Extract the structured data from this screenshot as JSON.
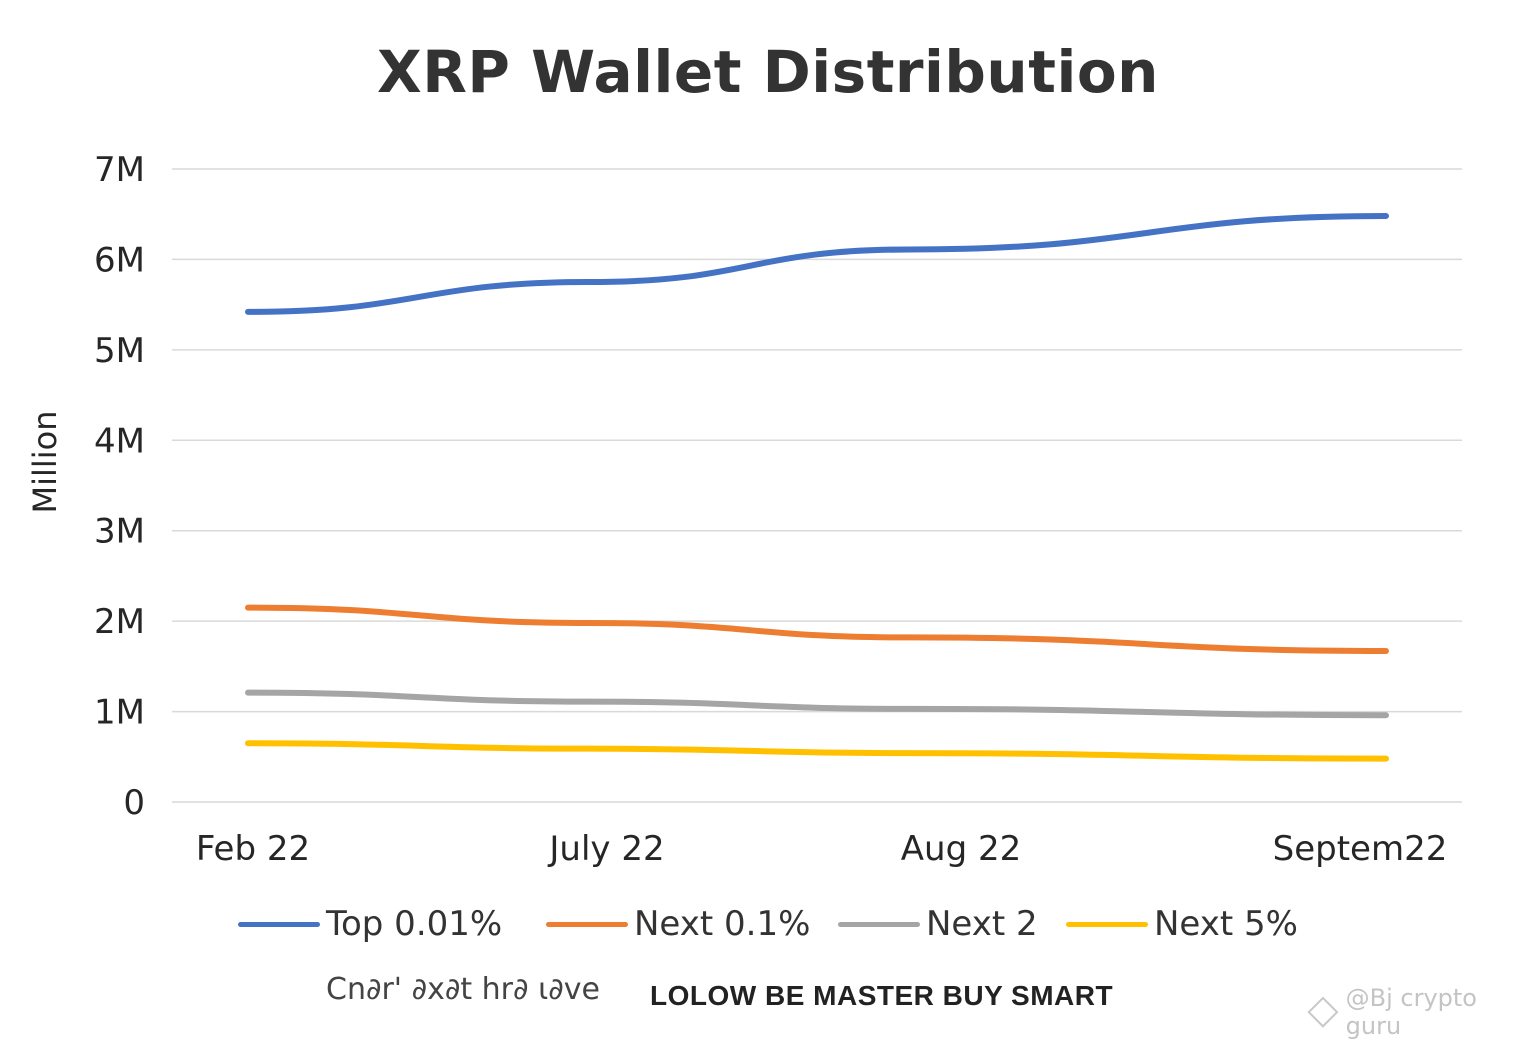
{
  "colors": {
    "top_001": "#4472C4",
    "next_01": "#ED7D31",
    "next_2": "#A5A5A5",
    "next_5": "#FFC000",
    "grid": "#d9d9d9",
    "axis_text": "#262626"
  },
  "chart_data": {
    "type": "line",
    "title": "XRP Wallet Distribution",
    "ylabel": "Million",
    "xlabel": "",
    "categories": [
      "Feb 22",
      "July 22",
      "Aug 22",
      "Septem22"
    ],
    "ylim": [
      0,
      7000000
    ],
    "yticks": [
      0,
      1000000,
      2000000,
      3000000,
      4000000,
      5000000,
      6000000,
      7000000
    ],
    "ytick_labels": [
      "0",
      "1M",
      "2M",
      "3M",
      "4M",
      "5M",
      "6M",
      "7M"
    ],
    "grid": true,
    "legend_position": "bottom",
    "series": [
      {
        "name": "Top 0.01%",
        "color_key": "top_001",
        "values": [
          5420000,
          5750000,
          6110000,
          6480000
        ]
      },
      {
        "name": "Next 0.1%",
        "color_key": "next_01",
        "values": [
          2150000,
          1980000,
          1820000,
          1670000
        ]
      },
      {
        "name": "Next 2",
        "color_key": "next_2",
        "values": [
          1210000,
          1110000,
          1030000,
          960000
        ]
      },
      {
        "name": "Next 5%",
        "color_key": "next_5",
        "values": [
          650000,
          590000,
          540000,
          480000
        ]
      }
    ]
  },
  "footer": {
    "faded_text": "Cn∂r' ∂x∂t hr∂ ι∂ve",
    "text": "LOLOW BE  MASTER BUY SMART",
    "watermark": "@Bj crypto guru"
  }
}
